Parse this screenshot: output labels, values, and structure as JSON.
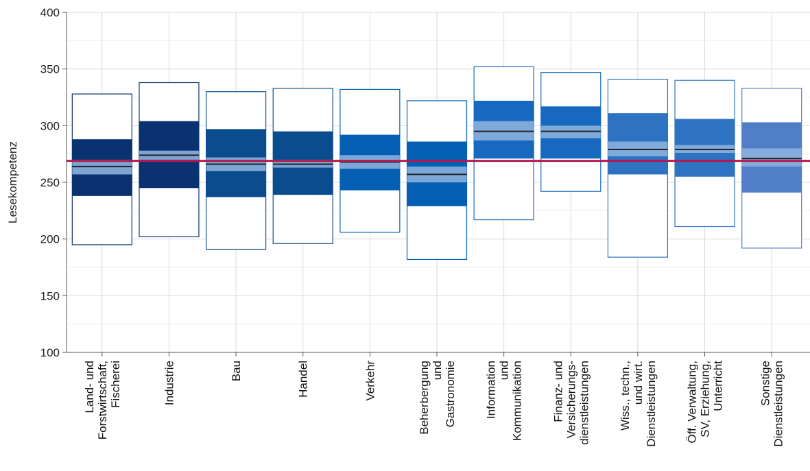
{
  "chart_data": {
    "type": "box",
    "ylabel": "Lesekompetenz",
    "xlabel": "",
    "ylim": [
      100,
      400
    ],
    "yticks": [
      100,
      150,
      200,
      250,
      300,
      350,
      400
    ],
    "grid": true,
    "reference_line": 269,
    "categories": [
      [
        "Land- und",
        "Forstwirtschaft,",
        "Fischerei"
      ],
      [
        "Industrie"
      ],
      [
        "Bau"
      ],
      [
        "Handel"
      ],
      [
        "Verkehr"
      ],
      [
        "Beherbergung",
        "und",
        "Gastronomie"
      ],
      [
        "Information",
        "und",
        "Kommunikation"
      ],
      [
        "Finanz- und",
        "Versicherungs-",
        "dienstleistungen"
      ],
      [
        "Wiss., techn.,",
        "und wirt.",
        "Dienstleistungen"
      ],
      [
        "Öff. Verwaltung,",
        "SV, Erziehung,",
        "Unterricht"
      ],
      [
        "Sonstige",
        "Dienstleistungen"
      ]
    ],
    "boxes": [
      {
        "p5": 195,
        "p25": 238,
        "ci_low": 257,
        "mean": 264,
        "ci_high": 270,
        "p75": 288,
        "p95": 328
      },
      {
        "p5": 202,
        "p25": 245,
        "ci_low": 270,
        "mean": 274,
        "ci_high": 278,
        "p75": 304,
        "p95": 338
      },
      {
        "p5": 191,
        "p25": 237,
        "ci_low": 260,
        "mean": 266,
        "ci_high": 272,
        "p75": 297,
        "p95": 330
      },
      {
        "p5": 196,
        "p25": 239,
        "ci_low": 263,
        "mean": 266,
        "ci_high": 270,
        "p75": 295,
        "p95": 333
      },
      {
        "p5": 206,
        "p25": 243,
        "ci_low": 262,
        "mean": 268,
        "ci_high": 274,
        "p75": 292,
        "p95": 332
      },
      {
        "p5": 182,
        "p25": 229,
        "ci_low": 250,
        "mean": 257,
        "ci_high": 264,
        "p75": 286,
        "p95": 322
      },
      {
        "p5": 217,
        "p25": 271,
        "ci_low": 287,
        "mean": 295,
        "ci_high": 304,
        "p75": 322,
        "p95": 352
      },
      {
        "p5": 242,
        "p25": 271,
        "ci_low": 289,
        "mean": 295,
        "ci_high": 300,
        "p75": 317,
        "p95": 347
      },
      {
        "p5": 184,
        "p25": 257,
        "ci_low": 273,
        "mean": 279,
        "ci_high": 286,
        "p75": 311,
        "p95": 341
      },
      {
        "p5": 211,
        "p25": 255,
        "ci_low": 276,
        "mean": 279,
        "ci_high": 283,
        "p75": 306,
        "p95": 340
      },
      {
        "p5": 192,
        "p25": 241,
        "ci_low": 264,
        "mean": 271,
        "ci_high": 280,
        "p75": 303,
        "p95": 333
      }
    ],
    "colors": {
      "box_fill": [
        "#0a3270",
        "#0a3270",
        "#0b4c8e",
        "#0b4c8e",
        "#0560b3",
        "#0560b3",
        "#1669bf",
        "#1669bf",
        "#2e72c2",
        "#2e72c2",
        "#507fc8"
      ],
      "outer_stroke": [
        "#0a3270",
        "#0a3270",
        "#0b4c8e",
        "#0b4c8e",
        "#0560b3",
        "#0560b3",
        "#1669bf",
        "#1669bf",
        "#2e72c2",
        "#2e72c2",
        "#507fc8"
      ],
      "ci_band": "#8ab0dd",
      "mean_line": "#222222",
      "reference_line": "#b5184e",
      "grid": "#dddddd",
      "axis": "#555555"
    }
  }
}
